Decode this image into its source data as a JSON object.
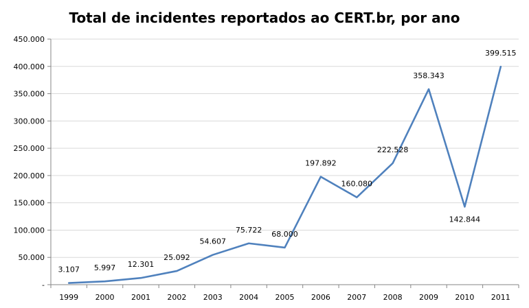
{
  "chart_data": {
    "type": "line",
    "title": "Total de incidentes reportados ao CERT.br, por ano",
    "xlabel": "",
    "ylabel": "",
    "categories": [
      "1999",
      "2000",
      "2001",
      "2002",
      "2003",
      "2004",
      "2005",
      "2006",
      "2007",
      "2008",
      "2009",
      "2010",
      "2011"
    ],
    "series": [
      {
        "values": [
          3107,
          5997,
          12301,
          25092,
          54607,
          75722,
          68000,
          197892,
          160080,
          222528,
          358343,
          142844,
          399515
        ],
        "labels": [
          "3.107",
          "5.997",
          "12.301",
          "25.092",
          "54.607",
          "75.722",
          "68.000",
          "197.892",
          "160.080",
          "222.528",
          "358.343",
          "142.844",
          "399.515"
        ],
        "color": "#4F81BD"
      }
    ],
    "ylim": [
      0,
      450000
    ],
    "yticks": [
      0,
      50000,
      100000,
      150000,
      200000,
      250000,
      300000,
      350000,
      400000,
      450000
    ],
    "ytick_labels": [
      "-",
      "50.000",
      "100.000",
      "150.000",
      "200.000",
      "250.000",
      "300.000",
      "350.000",
      "400.000",
      "450.000"
    ],
    "grid": true,
    "legend": "none",
    "colors": {
      "line": "#4F81BD",
      "grid": "#D9D9D9",
      "axis": "#868686"
    }
  }
}
